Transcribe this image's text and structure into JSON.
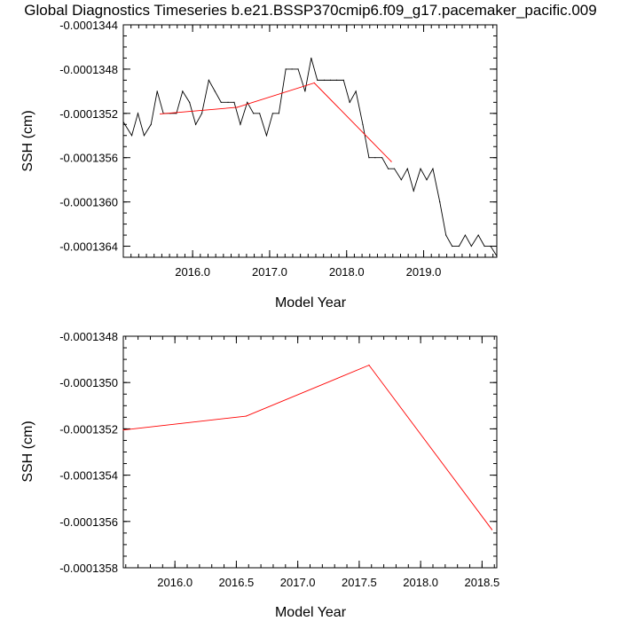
{
  "title": "Global Diagnostics Timeseries b.e21.BSSP370cmip6.f09_g17.pacemaker_pacific.009",
  "chart_data": [
    {
      "type": "line",
      "xlabel": "Model Year",
      "ylabel": "SSH (cm)",
      "xlim": [
        2015.1,
        2019.95
      ],
      "ylim": [
        -0.0001365,
        -0.0001344
      ],
      "x_ticks": [
        2016.0,
        2017.0,
        2018.0,
        2019.0
      ],
      "x_tick_labels": [
        "2016.0",
        "2017.0",
        "2018.0",
        "2019.0"
      ],
      "y_ticks": [
        -0.0001344,
        -0.0001348,
        -0.0001352,
        -0.0001356,
        -0.000136,
        -0.0001364
      ],
      "y_tick_labels": [
        "-0.0001344",
        "-0.0001348",
        "-0.0001352",
        "-0.0001356",
        "-0.0001360",
        "-0.0001364"
      ],
      "grid": false,
      "series": [
        {
          "color": "#000000",
          "x": [
            2015.04,
            2015.12,
            2015.21,
            2015.29,
            2015.37,
            2015.46,
            2015.54,
            2015.62,
            2015.71,
            2015.79,
            2015.87,
            2015.96,
            2016.04,
            2016.12,
            2016.21,
            2016.29,
            2016.37,
            2016.46,
            2016.54,
            2016.62,
            2016.71,
            2016.79,
            2016.87,
            2016.96,
            2017.04,
            2017.12,
            2017.21,
            2017.29,
            2017.37,
            2017.46,
            2017.54,
            2017.62,
            2017.71,
            2017.79,
            2017.87,
            2017.96,
            2018.04,
            2018.12,
            2018.21,
            2018.29,
            2018.37,
            2018.46,
            2018.54,
            2018.62,
            2018.71,
            2018.79,
            2018.87,
            2018.96,
            2019.04,
            2019.12,
            2019.21,
            2019.29,
            2019.37,
            2019.46,
            2019.54,
            2019.62,
            2019.71,
            2019.79,
            2019.87,
            2019.96
          ],
          "y": [
            -0.0001352,
            -0.0001353,
            -0.0001354,
            -0.0001352,
            -0.0001354,
            -0.0001353,
            -0.000135,
            -0.0001352,
            -0.0001352,
            -0.0001352,
            -0.000135,
            -0.0001351,
            -0.0001353,
            -0.0001352,
            -0.0001349,
            -0.000135,
            -0.0001351,
            -0.0001351,
            -0.0001351,
            -0.0001353,
            -0.0001351,
            -0.0001352,
            -0.0001352,
            -0.0001354,
            -0.0001352,
            -0.0001352,
            -0.0001348,
            -0.0001348,
            -0.0001348,
            -0.000135,
            -0.0001347,
            -0.0001349,
            -0.0001349,
            -0.0001349,
            -0.0001349,
            -0.0001349,
            -0.0001351,
            -0.000135,
            -0.0001353,
            -0.0001356,
            -0.0001356,
            -0.0001356,
            -0.0001357,
            -0.0001357,
            -0.0001358,
            -0.0001357,
            -0.0001359,
            -0.0001357,
            -0.0001358,
            -0.0001357,
            -0.000136,
            -0.0001363,
            -0.0001364,
            -0.0001364,
            -0.0001363,
            -0.0001364,
            -0.0001363,
            -0.0001364,
            -0.0001364,
            -0.0001365
          ]
        },
        {
          "color": "#ff0000",
          "x": [
            2015.58,
            2016.58,
            2017.58,
            2018.58
          ],
          "y": [
            -0.000135205,
            -0.000135145,
            -0.000134925,
            -0.000135635
          ]
        }
      ]
    },
    {
      "type": "line",
      "xlabel": "Model Year",
      "ylabel": "SSH (cm)",
      "xlim": [
        2015.58,
        2018.62
      ],
      "ylim": [
        -0.0001358,
        -0.0001348
      ],
      "x_ticks": [
        2016.0,
        2016.5,
        2017.0,
        2017.5,
        2018.0,
        2018.5
      ],
      "x_tick_labels": [
        "2016.0",
        "2016.5",
        "2017.0",
        "2017.5",
        "2018.0",
        "2018.5"
      ],
      "y_ticks": [
        -0.0001348,
        -0.000135,
        -0.0001352,
        -0.0001354,
        -0.0001356,
        -0.0001358
      ],
      "y_tick_labels": [
        "-0.0001348",
        "-0.0001350",
        "-0.0001352",
        "-0.0001354",
        "-0.0001356",
        "-0.0001358"
      ],
      "grid": false,
      "series": [
        {
          "color": "#ff0000",
          "x": [
            2015.58,
            2016.58,
            2017.58,
            2018.58
          ],
          "y": [
            -0.000135205,
            -0.000135145,
            -0.000134925,
            -0.000135635
          ]
        }
      ]
    }
  ]
}
